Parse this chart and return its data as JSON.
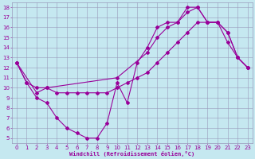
{
  "xlabel": "Windchill (Refroidissement éolien,°C)",
  "background_color": "#c5e8f0",
  "grid_color": "#9999bb",
  "line_color": "#990099",
  "xlim_min": -0.5,
  "xlim_max": 23.5,
  "ylim_min": 4.5,
  "ylim_max": 18.5,
  "xticks": [
    0,
    1,
    2,
    3,
    4,
    5,
    6,
    7,
    8,
    9,
    10,
    11,
    12,
    13,
    14,
    15,
    16,
    17,
    18,
    19,
    20,
    21,
    22,
    23
  ],
  "yticks": [
    5,
    6,
    7,
    8,
    9,
    10,
    11,
    12,
    13,
    14,
    15,
    16,
    17,
    18
  ],
  "s1_x": [
    0,
    1,
    2,
    3,
    4,
    5,
    6,
    7,
    8,
    9,
    10,
    11,
    12,
    13,
    14,
    15,
    16,
    17,
    18,
    19,
    20,
    21,
    22,
    23
  ],
  "s1_y": [
    12.5,
    10.5,
    9.0,
    8.5,
    7.0,
    6.0,
    5.5,
    5.0,
    5.0,
    6.5,
    10.5,
    8.5,
    12.5,
    14.0,
    16.0,
    16.5,
    16.5,
    18.0,
    18.0,
    16.5,
    16.5,
    14.5,
    13.0,
    12.0
  ],
  "s2_x": [
    0,
    1,
    2,
    3,
    4,
    5,
    6,
    7,
    8,
    9,
    10,
    11,
    12,
    13,
    14,
    15,
    16,
    17,
    18,
    19,
    20,
    21,
    22,
    23
  ],
  "s2_y": [
    12.5,
    10.5,
    10.0,
    10.0,
    9.5,
    9.5,
    9.5,
    9.5,
    9.5,
    9.5,
    10.0,
    10.5,
    11.0,
    11.5,
    12.5,
    13.5,
    14.5,
    15.5,
    16.5,
    16.5,
    16.5,
    15.5,
    13.0,
    12.0
  ],
  "s3_x": [
    0,
    2,
    3,
    10,
    13,
    14,
    15,
    16,
    17,
    18,
    19,
    20,
    21,
    22,
    23
  ],
  "s3_y": [
    12.5,
    9.5,
    10.0,
    11.0,
    13.5,
    15.0,
    16.0,
    16.5,
    17.5,
    18.0,
    16.5,
    16.5,
    15.5,
    13.0,
    12.0
  ],
  "tick_fontsize": 5,
  "label_fontsize": 5,
  "marker_size": 2,
  "lw": 0.8
}
